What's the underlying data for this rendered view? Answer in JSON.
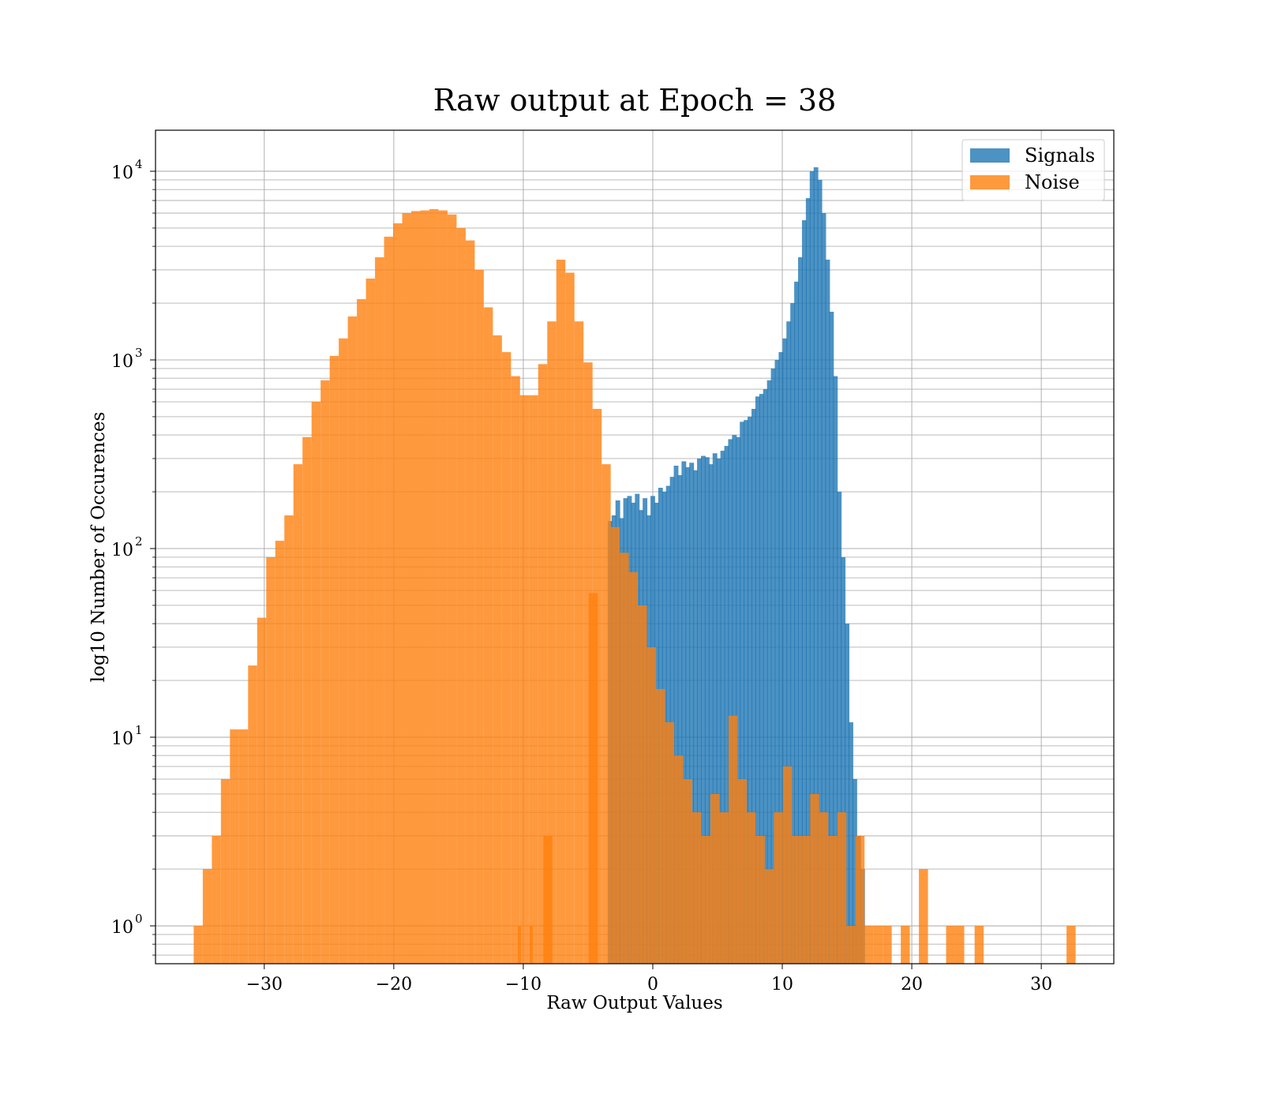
{
  "chart_data": {
    "type": "bar",
    "title": "Raw output at Epoch = 38",
    "xlabel": "Raw Output Values",
    "ylabel": "log10 Number of Occurences",
    "y_scale": "log",
    "xlim": [
      -38.4,
      35.6
    ],
    "ylim": [
      0.63,
      16500
    ],
    "x_ticks": [
      -30,
      -20,
      -10,
      0,
      10,
      20,
      30
    ],
    "x_tick_labels": [
      "−30",
      "−20",
      "−10",
      "0",
      "10",
      "20",
      "30"
    ],
    "y_ticks": [
      1,
      10,
      100,
      1000,
      10000
    ],
    "y_tick_mantissa": "10",
    "y_tick_exponents": [
      "0",
      "1",
      "2",
      "3",
      "4"
    ],
    "grid": true,
    "legend_position": "top-right",
    "series": [
      {
        "name": "Signals",
        "color": "#1f77b4",
        "opacity": 0.8,
        "bin_width": 0.36,
        "bins": [
          [
            -3.3,
            140
          ],
          [
            -3.0,
            150
          ],
          [
            -2.7,
            180
          ],
          [
            -2.4,
            145
          ],
          [
            -2.1,
            185
          ],
          [
            -1.8,
            190
          ],
          [
            -1.5,
            175
          ],
          [
            -1.2,
            195
          ],
          [
            -0.9,
            160
          ],
          [
            -0.6,
            185
          ],
          [
            -0.3,
            150
          ],
          [
            0.0,
            190
          ],
          [
            0.3,
            175
          ],
          [
            0.6,
            210
          ],
          [
            0.9,
            200
          ],
          [
            1.2,
            215
          ],
          [
            1.5,
            240
          ],
          [
            1.8,
            275
          ],
          [
            2.1,
            245
          ],
          [
            2.4,
            290
          ],
          [
            2.7,
            270
          ],
          [
            3.0,
            285
          ],
          [
            3.3,
            260
          ],
          [
            3.6,
            300
          ],
          [
            3.9,
            310
          ],
          [
            4.2,
            305
          ],
          [
            4.5,
            280
          ],
          [
            4.8,
            320
          ],
          [
            5.1,
            300
          ],
          [
            5.4,
            330
          ],
          [
            5.7,
            350
          ],
          [
            6.0,
            380
          ],
          [
            6.3,
            400
          ],
          [
            6.6,
            390
          ],
          [
            6.9,
            470
          ],
          [
            7.2,
            480
          ],
          [
            7.5,
            500
          ],
          [
            7.8,
            550
          ],
          [
            8.1,
            640
          ],
          [
            8.4,
            660
          ],
          [
            8.7,
            700
          ],
          [
            9.0,
            780
          ],
          [
            9.3,
            900
          ],
          [
            9.6,
            1000
          ],
          [
            9.9,
            1100
          ],
          [
            10.2,
            1300
          ],
          [
            10.5,
            1600
          ],
          [
            10.8,
            2000
          ],
          [
            11.1,
            2600
          ],
          [
            11.4,
            3500
          ],
          [
            11.7,
            5500
          ],
          [
            12.0,
            7200
          ],
          [
            12.3,
            10000
          ],
          [
            12.6,
            10500
          ],
          [
            12.9,
            9000
          ],
          [
            13.2,
            6000
          ],
          [
            13.5,
            3400
          ],
          [
            13.8,
            1800
          ],
          [
            14.1,
            820
          ],
          [
            14.4,
            200
          ],
          [
            14.7,
            90
          ],
          [
            15.0,
            40
          ],
          [
            15.3,
            12
          ],
          [
            15.6,
            6
          ],
          [
            15.9,
            3
          ],
          [
            16.2,
            2
          ]
        ]
      },
      {
        "name": "Noise",
        "color": "#ff7f0e",
        "opacity": 0.8,
        "bins": [
          [
            -35.1,
            1
          ],
          [
            -34.4,
            2
          ],
          [
            -33.7,
            3
          ],
          [
            -33.0,
            6
          ],
          [
            -32.3,
            11
          ],
          [
            -31.6,
            11
          ],
          [
            -30.9,
            24
          ],
          [
            -30.2,
            43
          ],
          [
            -29.5,
            90
          ],
          [
            -28.8,
            110
          ],
          [
            -28.1,
            150
          ],
          [
            -27.4,
            280
          ],
          [
            -26.7,
            390
          ],
          [
            -26.0,
            600
          ],
          [
            -25.3,
            780
          ],
          [
            -24.6,
            1050
          ],
          [
            -23.9,
            1300
          ],
          [
            -23.2,
            1700
          ],
          [
            -22.5,
            2100
          ],
          [
            -21.8,
            2700
          ],
          [
            -21.1,
            3500
          ],
          [
            -20.4,
            4500
          ],
          [
            -19.7,
            5300
          ],
          [
            -19.0,
            6000
          ],
          [
            -18.3,
            6150
          ],
          [
            -17.6,
            6200
          ],
          [
            -16.9,
            6300
          ],
          [
            -16.2,
            6200
          ],
          [
            -15.5,
            5900
          ],
          [
            -14.8,
            5000
          ],
          [
            -14.1,
            4300
          ],
          [
            -13.4,
            3000
          ],
          [
            -12.7,
            1900
          ],
          [
            -12.0,
            1350
          ],
          [
            -11.3,
            1100
          ],
          [
            -10.6,
            820
          ],
          [
            -9.9,
            650
          ],
          [
            -9.2,
            650
          ],
          [
            -8.5,
            950
          ],
          [
            -7.8,
            1600
          ],
          [
            -7.1,
            3400
          ],
          [
            -6.4,
            2900
          ],
          [
            -5.7,
            1600
          ],
          [
            -5.0,
            970
          ],
          [
            -4.3,
            550
          ],
          [
            -3.6,
            280
          ],
          [
            -2.9,
            130
          ],
          [
            -2.2,
            95
          ],
          [
            -1.5,
            75
          ],
          [
            -0.8,
            50
          ],
          [
            -0.1,
            30
          ],
          [
            0.6,
            18
          ],
          [
            1.3,
            12
          ],
          [
            2.0,
            8
          ],
          [
            2.7,
            6
          ],
          [
            3.4,
            4
          ],
          [
            4.1,
            3
          ],
          [
            4.8,
            5
          ],
          [
            5.5,
            4
          ],
          [
            6.2,
            13
          ],
          [
            6.9,
            6
          ],
          [
            7.6,
            4
          ],
          [
            8.3,
            3
          ],
          [
            9.0,
            2
          ],
          [
            9.7,
            4
          ],
          [
            10.4,
            7
          ],
          [
            11.1,
            3
          ],
          [
            11.8,
            3
          ],
          [
            12.5,
            5
          ],
          [
            13.2,
            4
          ],
          [
            13.9,
            3
          ],
          [
            14.6,
            4
          ],
          [
            15.3,
            1
          ],
          [
            16.0,
            3
          ],
          [
            16.7,
            1
          ],
          [
            17.4,
            1
          ],
          [
            18.1,
            1
          ],
          [
            19.5,
            1
          ],
          [
            20.9,
            2
          ],
          [
            23.0,
            1
          ],
          [
            23.7,
            1
          ],
          [
            25.2,
            1
          ],
          [
            32.3,
            1
          ],
          [
            -10.3,
            1
          ],
          [
            -9.4,
            1
          ],
          [
            -8.1,
            3
          ],
          [
            -4.6,
            58
          ]
        ]
      }
    ]
  }
}
